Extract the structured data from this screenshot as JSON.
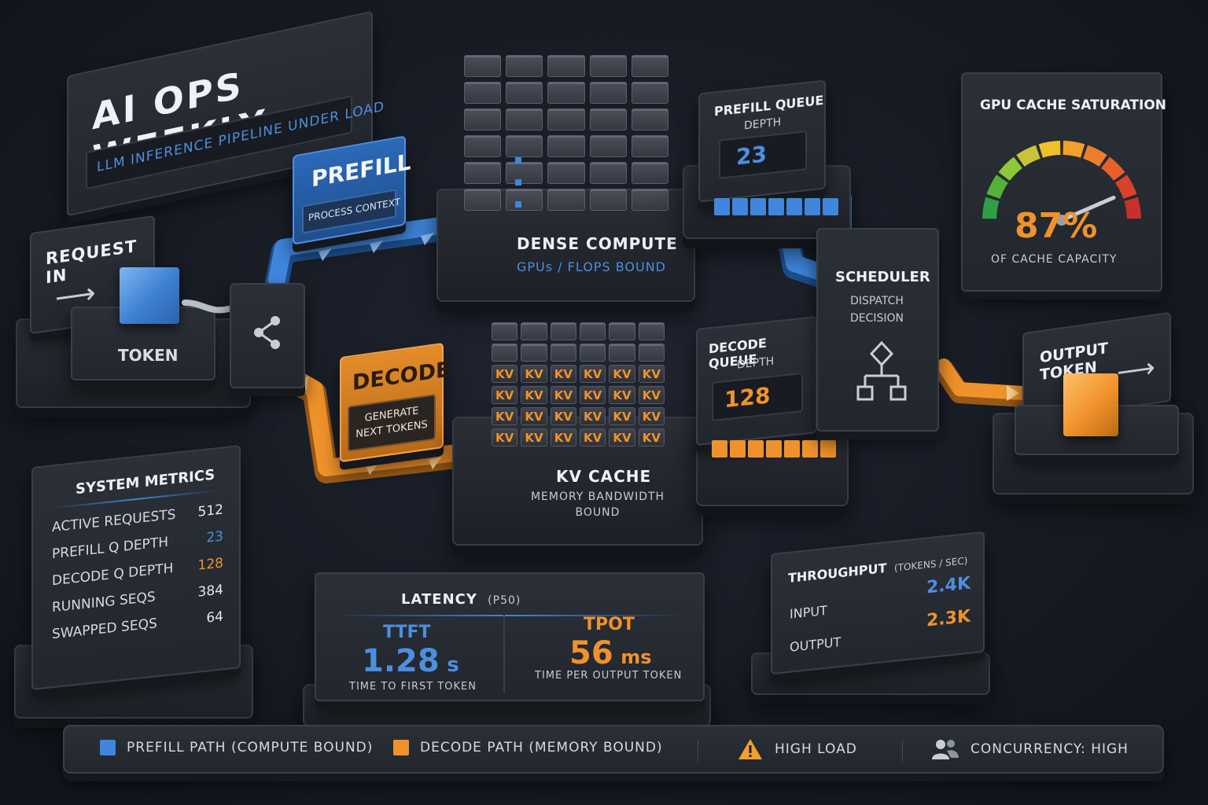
{
  "title": {
    "main": "AI OPS WEEKLY",
    "subtitle": "LLM INFERENCE PIPELINE UNDER LOAD"
  },
  "request_in": {
    "label": "REQUEST IN",
    "token_label": "TOKEN"
  },
  "prefill": {
    "label": "PREFILL",
    "sub": "PROCESS CONTEXT"
  },
  "decode": {
    "label": "DECODE",
    "sub": "GENERATE NEXT TOKENS"
  },
  "dense_compute": {
    "label": "DENSE COMPUTE",
    "sub": "GPUs / FLOPS BOUND"
  },
  "kv_cache": {
    "label": "KV CACHE",
    "sub": "MEMORY BANDWIDTH BOUND",
    "cell_text": "KV"
  },
  "prefill_queue": {
    "label": "PREFILL QUEUE",
    "sub": "DEPTH",
    "value": "23"
  },
  "decode_queue": {
    "label": "DECODE QUEUE",
    "sub": "DEPTH",
    "value": "128"
  },
  "scheduler": {
    "label": "SCHEDULER",
    "sub": "DISPATCH DECISION"
  },
  "output_token": {
    "label": "OUTPUT TOKEN"
  },
  "gpu_cache": {
    "title": "GPU CACHE SATURATION",
    "value": "87%",
    "value_fraction": 0.87,
    "caption": "OF CACHE CAPACITY"
  },
  "system_metrics": {
    "title": "SYSTEM METRICS",
    "rows": [
      {
        "label": "ACTIVE REQUESTS",
        "value": "512",
        "color": "#e6e9ee"
      },
      {
        "label": "PREFILL Q DEPTH",
        "value": "23",
        "color": "#4c8fe0"
      },
      {
        "label": "DECODE Q DEPTH",
        "value": "128",
        "color": "#f0922b"
      },
      {
        "label": "RUNNING SEQS",
        "value": "384",
        "color": "#e6e9ee"
      },
      {
        "label": "SWAPPED SEQS",
        "value": "64",
        "color": "#e6e9ee"
      }
    ]
  },
  "latency": {
    "title": "LATENCY",
    "title_qualifier": "(P50)",
    "ttft_label": "TTFT",
    "ttft_value": "1.28",
    "ttft_unit": "s",
    "ttft_caption": "TIME TO FIRST TOKEN",
    "tpot_label": "TPOT",
    "tpot_value": "56",
    "tpot_unit": "ms",
    "tpot_caption": "TIME PER OUTPUT TOKEN"
  },
  "throughput": {
    "title": "THROUGHPUT",
    "title_qualifier": "(TOKENS / SEC)",
    "input_label": "INPUT",
    "input_value": "2.4K",
    "output_label": "OUTPUT",
    "output_value": "2.3K"
  },
  "legend": {
    "prefill": "PREFILL PATH (COMPUTE BOUND)",
    "decode": "DECODE PATH (MEMORY BOUND)",
    "high_load": "HIGH LOAD",
    "concurrency": "CONCURRENCY: HIGH"
  },
  "colors": {
    "prefill": "#3f86dc",
    "decode": "#f0922b",
    "background": "#161a22"
  },
  "icons": [
    "arrow-right-icon",
    "share-icon",
    "flowchart-icon",
    "warning-icon",
    "users-icon"
  ]
}
